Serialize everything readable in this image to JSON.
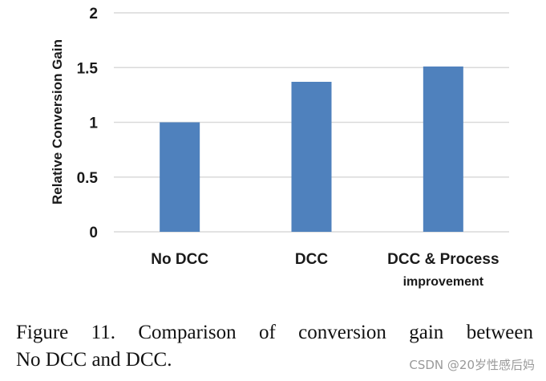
{
  "chart_data": {
    "type": "bar",
    "categories": [
      "No DCC",
      "DCC",
      "DCC & Process improvement"
    ],
    "category_lines": [
      [
        "No DCC"
      ],
      [
        "DCC"
      ],
      [
        "DCC & Process",
        "improvement"
      ]
    ],
    "values": [
      1.0,
      1.37,
      1.51
    ],
    "ylabel": "Relative Conversion Gain",
    "xlabel": "",
    "ylim": [
      0,
      2
    ],
    "yticks": [
      0,
      0.5,
      1,
      1.5,
      2
    ],
    "ytick_labels": [
      "0",
      "0.5",
      "1",
      "1.5",
      "2"
    ],
    "grid": true,
    "bar_color": "#4f81bd",
    "grid_color": "#d9d9d9"
  },
  "caption": {
    "line1": "Figure 11. Comparison of conversion gain between",
    "line2": "No DCC and DCC."
  },
  "watermark": "CSDN @20岁性感后妈"
}
